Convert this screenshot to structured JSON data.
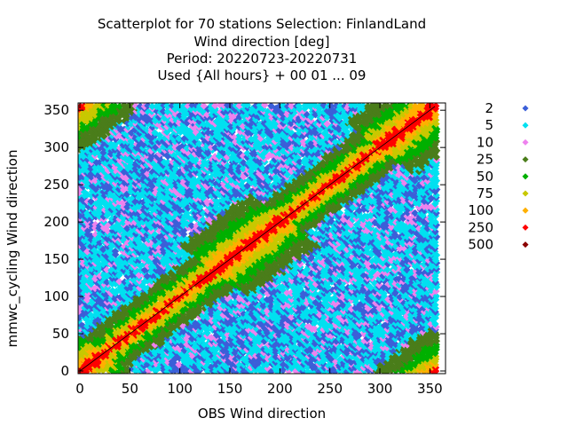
{
  "chart_data": {
    "type": "scatter",
    "title_lines": [
      "Scatterplot for   70 stations Selection: FinlandLand",
      "Wind direction [deg]",
      "Period: 20220723-20220731",
      "Used {All hours} + 00 01 ... 09"
    ],
    "xlabel": "OBS Wind direction",
    "ylabel": "mmwc_cycling Wind direction",
    "xlim": [
      0,
      355
    ],
    "ylim": [
      0,
      355
    ],
    "x_ticks": [
      0,
      50,
      100,
      150,
      200,
      250,
      300,
      350
    ],
    "y_ticks": [
      0,
      50,
      100,
      150,
      200,
      250,
      300,
      350
    ],
    "grid": false,
    "diagonal_reference_line": true,
    "legend_position": "right",
    "legend": [
      {
        "label": "2",
        "color": "#3b5fd8"
      },
      {
        "label": "5",
        "color": "#00e0f0"
      },
      {
        "label": "10",
        "color": "#ee82ee"
      },
      {
        "label": "25",
        "color": "#4a7d1a"
      },
      {
        "label": "50",
        "color": "#00b000"
      },
      {
        "label": "75",
        "color": "#c8c800"
      },
      {
        "label": "100",
        "color": "#ffb000"
      },
      {
        "label": "250",
        "color": "#ff0000"
      },
      {
        "label": "500",
        "color": "#8b0000"
      }
    ],
    "density_bands": [
      {
        "level": 0,
        "max_offset": 4,
        "color": "#ff0000"
      },
      {
        "level": 1,
        "max_offset": 8,
        "color": "#ffb000"
      },
      {
        "level": 2,
        "max_offset": 13,
        "color": "#c8c800"
      },
      {
        "level": 3,
        "max_offset": 20,
        "color": "#00b000"
      },
      {
        "level": 4,
        "max_offset": 30,
        "color": "#4a7d1a"
      }
    ],
    "background_mix": [
      "#00e0f0",
      "#00e0f0",
      "#3b5fd8",
      "#ee82ee",
      "#3b5fd8",
      "#00e0f0"
    ]
  }
}
